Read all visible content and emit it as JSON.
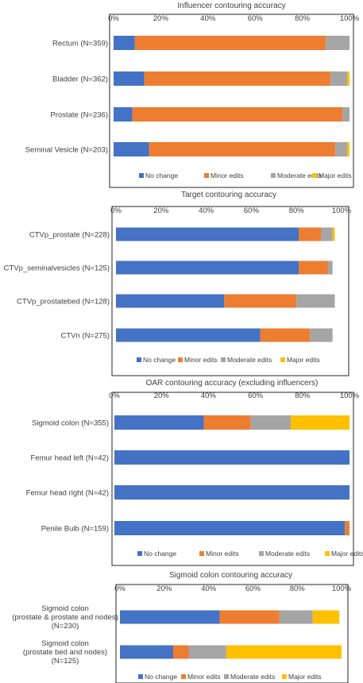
{
  "colors": {
    "no_change": "#4472C4",
    "minor_edits": "#ED7D31",
    "moderate_edits": "#A5A5A5",
    "major_edits": "#FFC000"
  },
  "chart_data": [
    {
      "type": "bar",
      "orientation": "horizontal",
      "stacked": true,
      "title": "Influencer contouring accuracy",
      "categories": [
        "Rectum (N=359)",
        "Bladder (N=362)",
        "Prostate (N=236)",
        "Seminal Vesicle (N=203)"
      ],
      "series": [
        {
          "name": "No change",
          "values": [
            9,
            13,
            8,
            15
          ]
        },
        {
          "name": "Minor edits",
          "values": [
            81,
            79,
            89,
            79
          ]
        },
        {
          "name": "Moderate edits",
          "values": [
            10,
            7,
            3,
            5
          ]
        },
        {
          "name": "Major edits",
          "values": [
            0,
            1,
            0,
            1
          ]
        }
      ],
      "xlim": [
        0,
        100
      ],
      "xticks": [
        "0%",
        "20%",
        "40%",
        "60%",
        "80%",
        "100%"
      ],
      "legend": "bottom",
      "grid": false
    },
    {
      "type": "bar",
      "orientation": "horizontal",
      "stacked": true,
      "title": "Target contouring accuracy",
      "categories": [
        "CTVp_prostate (N=228)",
        "CTVp_seminalvesicles (N=125)",
        "CTVp_prostatebed (N=128)",
        "CTVn (N=275)"
      ],
      "series": [
        {
          "name": "No change",
          "values": [
            81,
            81,
            48,
            64
          ]
        },
        {
          "name": "Minor edits",
          "values": [
            10,
            13,
            32,
            22
          ]
        },
        {
          "name": "Moderate edits",
          "values": [
            5,
            2,
            17,
            10
          ]
        },
        {
          "name": "Major edits",
          "values": [
            1,
            0,
            0,
            0
          ]
        }
      ],
      "xlim": [
        0,
        100
      ],
      "xticks": [
        "0%",
        "20%",
        "40%",
        "60%",
        "80%",
        "100%"
      ],
      "legend": "bottom",
      "grid": false
    },
    {
      "type": "bar",
      "orientation": "horizontal",
      "stacked": true,
      "title": "OAR contouring accuracy (excluding influencers)",
      "categories": [
        "Sigmoid colon (N=355)",
        "Femur head left (N=42)",
        "Femur head right (N=42)",
        "Penile Bulb (N=159)"
      ],
      "series": [
        {
          "name": "No change",
          "values": [
            38,
            100,
            100,
            98
          ]
        },
        {
          "name": "Minor edits",
          "values": [
            20,
            0,
            0,
            2
          ]
        },
        {
          "name": "Moderate edits",
          "values": [
            17,
            0,
            0,
            0
          ]
        },
        {
          "name": "Major edits",
          "values": [
            25,
            0,
            0,
            0
          ]
        }
      ],
      "xlim": [
        0,
        100
      ],
      "xticks": [
        "0%",
        "20%",
        "40%",
        "60%",
        "80%",
        "100%"
      ],
      "legend": "bottom",
      "grid": false
    },
    {
      "type": "bar",
      "orientation": "horizontal",
      "stacked": true,
      "title": "Sigmoid colon contouring accuracy",
      "categories": [
        [
          "Sigmoid colon",
          "(prostate & prostate and nodes)",
          "(N=230)"
        ],
        [
          "Sigmoid colon",
          "(prostate bed and nodes)",
          "(N=125)"
        ]
      ],
      "series": [
        {
          "name": "No change",
          "values": [
            45,
            24
          ]
        },
        {
          "name": "Minor edits",
          "values": [
            27,
            7
          ]
        },
        {
          "name": "Moderate edits",
          "values": [
            15,
            17
          ]
        },
        {
          "name": "Major edits",
          "values": [
            12,
            52
          ]
        }
      ],
      "xlim": [
        0,
        100
      ],
      "xticks": [
        "0%",
        "20%",
        "40%",
        "60%",
        "80%",
        "100%"
      ],
      "legend": "bottom",
      "grid": false
    }
  ]
}
